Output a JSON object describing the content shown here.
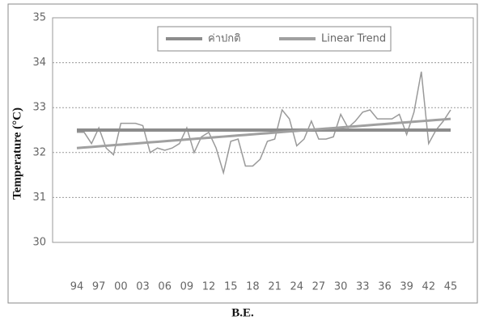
{
  "chart_data": {
    "type": "line",
    "y_label": "Temperature (°C)",
    "x_label": "B.E.",
    "categories": [
      "94",
      null,
      null,
      "97",
      null,
      null,
      "00",
      null,
      null,
      "03",
      null,
      null,
      "06",
      null,
      null,
      "09",
      null,
      null,
      "12",
      null,
      null,
      "15",
      null,
      null,
      "18",
      null,
      null,
      "21",
      null,
      null,
      "24",
      null,
      null,
      "27",
      null,
      null,
      "30",
      null,
      null,
      "33",
      null,
      null,
      "36",
      null,
      null,
      "39",
      null,
      null,
      "42",
      null,
      null,
      "45"
    ],
    "series": [
      {
        "color": "#9a9a9a",
        "width": 1.5,
        "values": [
          32.45,
          32.45,
          32.2,
          32.55,
          32.1,
          31.95,
          32.65,
          32.65,
          32.65,
          32.6,
          32.0,
          32.1,
          32.05,
          32.1,
          32.2,
          32.55,
          32.0,
          32.35,
          32.45,
          32.1,
          31.55,
          32.25,
          32.3,
          31.7,
          31.7,
          31.85,
          32.25,
          32.3,
          32.95,
          32.75,
          32.15,
          32.3,
          32.7,
          32.3,
          32.3,
          32.35,
          32.85,
          32.55,
          32.7,
          32.9,
          32.95,
          32.75,
          32.75,
          32.75,
          32.85,
          32.4,
          32.9,
          33.8,
          32.2,
          32.5,
          32.7,
          32.95
        ]
      },
      {
        "name": "ค่าปกติ",
        "color": "#8c8c8c",
        "width": 4,
        "values": [
          32.5,
          32.5,
          32.5,
          32.5,
          32.5,
          32.5,
          32.5,
          32.5,
          32.5,
          32.5,
          32.5,
          32.5,
          32.5,
          32.5,
          32.5,
          32.5,
          32.5,
          32.5,
          32.5,
          32.5,
          32.5,
          32.5,
          32.5,
          32.5,
          32.5,
          32.5,
          32.5,
          32.5,
          32.5,
          32.5,
          32.5,
          32.5,
          32.5,
          32.5,
          32.5,
          32.5,
          32.5,
          32.5,
          32.5,
          32.5,
          32.5,
          32.5,
          32.5,
          32.5,
          32.5,
          32.5,
          32.5,
          32.5,
          32.5,
          32.5,
          32.5,
          32.5
        ]
      },
      {
        "name": "Linear Trend",
        "color": "#a0a0a0",
        "width": 3,
        "values": [
          32.1,
          32.113,
          32.125,
          32.138,
          32.151,
          32.164,
          32.176,
          32.189,
          32.202,
          32.215,
          32.227,
          32.24,
          32.253,
          32.266,
          32.278,
          32.291,
          32.304,
          32.317,
          32.329,
          32.342,
          32.355,
          32.368,
          32.38,
          32.393,
          32.406,
          32.419,
          32.431,
          32.444,
          32.457,
          32.47,
          32.482,
          32.495,
          32.508,
          32.521,
          32.533,
          32.546,
          32.559,
          32.572,
          32.584,
          32.597,
          32.61,
          32.623,
          32.635,
          32.648,
          32.661,
          32.674,
          32.686,
          32.699,
          32.712,
          32.725,
          32.737,
          32.75
        ]
      }
    ],
    "ylim": [
      30,
      35
    ],
    "yticks": [
      30,
      31,
      32,
      33,
      34,
      35
    ],
    "grid": true
  }
}
